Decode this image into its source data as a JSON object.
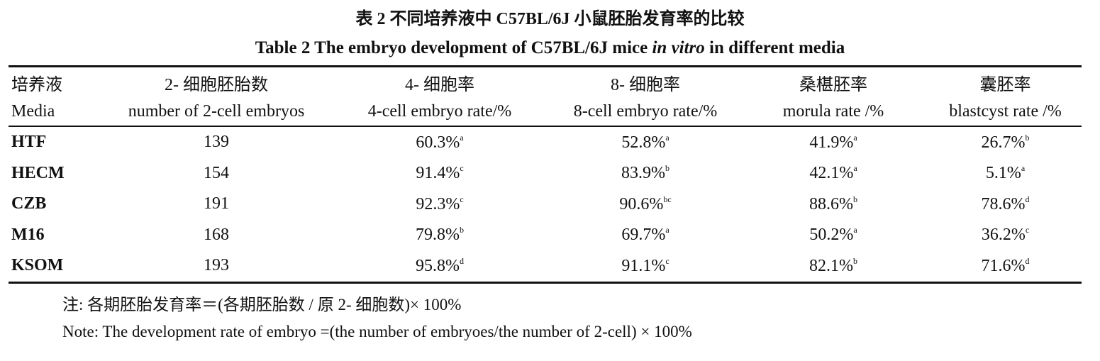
{
  "title_zh": "表 2  不同培养液中 C57BL/6J 小鼠胚胎发育率的比较",
  "title_en": [
    "Table 2  The embryo development of C57BL/6J mice ",
    "in vitro",
    " in different media"
  ],
  "table": {
    "header_zh": [
      "培养液",
      "2- 细胞胚胎数",
      "4- 细胞率",
      "8- 细胞率",
      "桑椹胚率",
      "囊胚率"
    ],
    "header_en": [
      "Media",
      "number of 2-cell embryos",
      "4-cell embryo rate/%",
      "8-cell embryo rate/%",
      "morula rate /%",
      "blastcyst rate /%"
    ],
    "rows": [
      [
        {
          "text": "HTF"
        },
        {
          "text": "139"
        },
        {
          "text": "60.3%",
          "sup": "a"
        },
        {
          "text": "52.8%",
          "sup": "a"
        },
        {
          "text": "41.9%",
          "sup": "a"
        },
        {
          "text": "26.7%",
          "sup": "b"
        }
      ],
      [
        {
          "text": "HECM"
        },
        {
          "text": "154"
        },
        {
          "text": "91.4%",
          "sup": "c"
        },
        {
          "text": "83.9%",
          "sup": "b"
        },
        {
          "text": "42.1%",
          "sup": "a"
        },
        {
          "text": "5.1%",
          "sup": "a"
        }
      ],
      [
        {
          "text": "CZB"
        },
        {
          "text": "191"
        },
        {
          "text": "92.3%",
          "sup": "c"
        },
        {
          "text": "90.6%",
          "sup": "bc"
        },
        {
          "text": "88.6%",
          "sup": "b"
        },
        {
          "text": "78.6%",
          "sup": "d"
        }
      ],
      [
        {
          "text": "M16"
        },
        {
          "text": "168"
        },
        {
          "text": "79.8%",
          "sup": "b"
        },
        {
          "text": "69.7%",
          "sup": "a"
        },
        {
          "text": "50.2%",
          "sup": "a"
        },
        {
          "text": "36.2%",
          "sup": "c"
        }
      ],
      [
        {
          "text": "KSOM"
        },
        {
          "text": "193"
        },
        {
          "text": "95.8%",
          "sup": "d"
        },
        {
          "text": "91.1%",
          "sup": "c"
        },
        {
          "text": "82.1%",
          "sup": "b"
        },
        {
          "text": "71.6%",
          "sup": "d"
        }
      ]
    ]
  },
  "notes": [
    "注: 各期胚胎发育率＝(各期胚胎数 / 原 2- 细胞数)× 100%",
    "Note: The development rate of embryo =(the number of embryoes/the number of 2-cell) × 100%"
  ]
}
